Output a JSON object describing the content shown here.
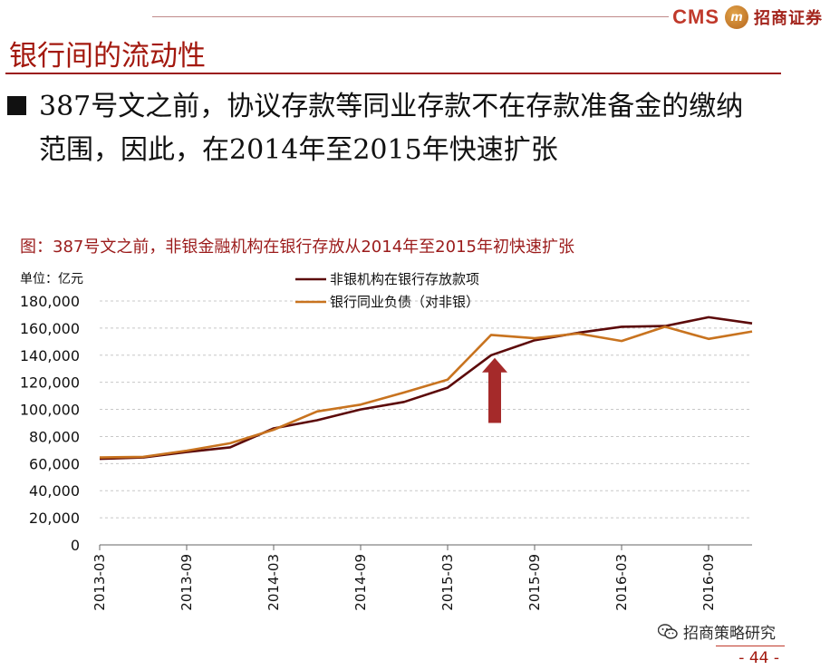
{
  "header": {
    "brand_latin": "CMS",
    "brand_logo_text": "m",
    "brand_chinese": "招商证券"
  },
  "slide": {
    "title": "银行间的流动性",
    "bullet": "387号文之前，协议存款等同业存款不在存款准备金的缴纳范围，因此，在2014年至2015年快速扩张"
  },
  "footer": {
    "watermark": "招商策略研究",
    "page_number": "- 44 -"
  },
  "colors": {
    "title_red": "#a3180e",
    "series1": "#5c0a0a",
    "series2": "#c8731f",
    "arrow": "#a52a2a"
  },
  "chart_data": {
    "type": "line",
    "title": "图：387号文之前，非银金融机构在银行存放从2014年至2015年初快速扩张",
    "unit_label": "单位：亿元",
    "ylim": [
      0,
      180000
    ],
    "yticks": [
      "0",
      "20,000",
      "40,000",
      "60,000",
      "80,000",
      "100,000",
      "120,000",
      "140,000",
      "160,000",
      "180,000"
    ],
    "x": [
      "2013-03",
      "2013-06",
      "2013-09",
      "2013-12",
      "2014-03",
      "2014-06",
      "2014-09",
      "2014-12",
      "2015-03",
      "2015-06",
      "2015-09",
      "2015-12",
      "2016-03",
      "2016-06",
      "2016-09",
      "2016-12"
    ],
    "xticks": [
      "2013-03",
      "2013-09",
      "2014-03",
      "2014-09",
      "2015-03",
      "2015-09",
      "2016-03",
      "2016-09"
    ],
    "grid": "horizontal dashed",
    "legend": "top-center",
    "series": [
      {
        "name": "非银机构在银行存放款项",
        "values": [
          63500,
          64500,
          68500,
          72000,
          86000,
          92000,
          100000,
          105500,
          116000,
          140000,
          151000,
          156500,
          161000,
          161500,
          168000,
          163500
        ]
      },
      {
        "name": "银行同业负债（对非银）",
        "values": [
          64500,
          65000,
          69500,
          75000,
          85000,
          98500,
          103500,
          112500,
          122000,
          155000,
          152500,
          156000,
          150500,
          161000,
          152000,
          157500
        ]
      }
    ],
    "annotations": [
      {
        "type": "up-arrow",
        "x": "2015-06"
      }
    ]
  }
}
